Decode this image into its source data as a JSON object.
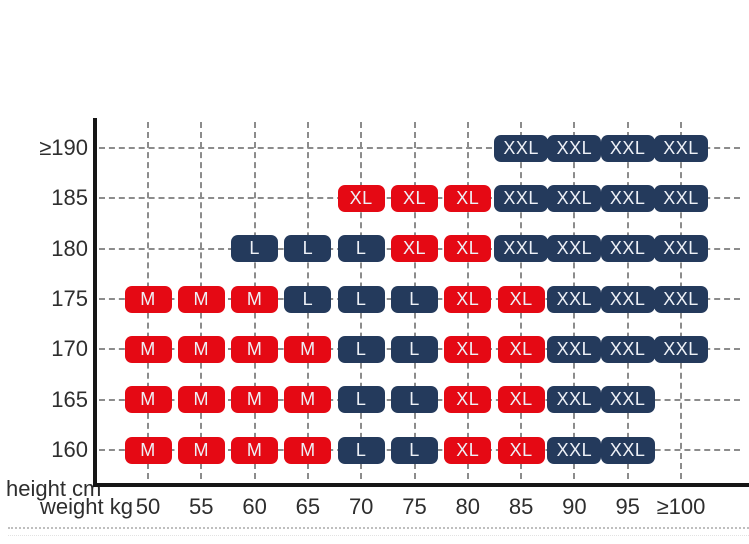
{
  "chart_data": {
    "type": "heatmap",
    "title": "",
    "x_axis_label": "weight kg",
    "y_axis_label": "height cm",
    "columns": [
      "50",
      "55",
      "60",
      "65",
      "70",
      "75",
      "80",
      "85",
      "90",
      "95",
      "≥100"
    ],
    "rows": [
      "≥190",
      "185",
      "180",
      "175",
      "170",
      "165",
      "160"
    ],
    "matrix": [
      [
        null,
        null,
        null,
        null,
        null,
        null,
        null,
        "XXL",
        "XXL",
        "XXL",
        "XXL"
      ],
      [
        null,
        null,
        null,
        null,
        "XL",
        "XL",
        "XL",
        "XXL",
        "XXL",
        "XXL",
        "XXL"
      ],
      [
        null,
        null,
        "L",
        "L",
        "L",
        "XL",
        "XL",
        "XXL",
        "XXL",
        "XXL",
        "XXL"
      ],
      [
        "M",
        "M",
        "M",
        "L",
        "L",
        "L",
        "XL",
        "XL",
        "XXL",
        "XXL",
        "XXL"
      ],
      [
        "M",
        "M",
        "M",
        "M",
        "L",
        "L",
        "XL",
        "XL",
        "XXL",
        "XXL",
        "XXL"
      ],
      [
        "M",
        "M",
        "M",
        "M",
        "L",
        "L",
        "XL",
        "XL",
        "XXL",
        "XXL",
        null
      ],
      [
        "M",
        "M",
        "M",
        "M",
        "L",
        "L",
        "XL",
        "XL",
        "XXL",
        "XXL",
        null
      ]
    ],
    "size_colors": {
      "M": "#e50914",
      "L": "#243a5c",
      "XL": "#e50914",
      "XXL": "#243a5c"
    },
    "badge_text_color": "#eef1f7",
    "grid_color": "#8c8c8c",
    "axis_color": "#161616",
    "label_color": "#2e2e2e",
    "grid_on": true,
    "legend_position": "none"
  }
}
